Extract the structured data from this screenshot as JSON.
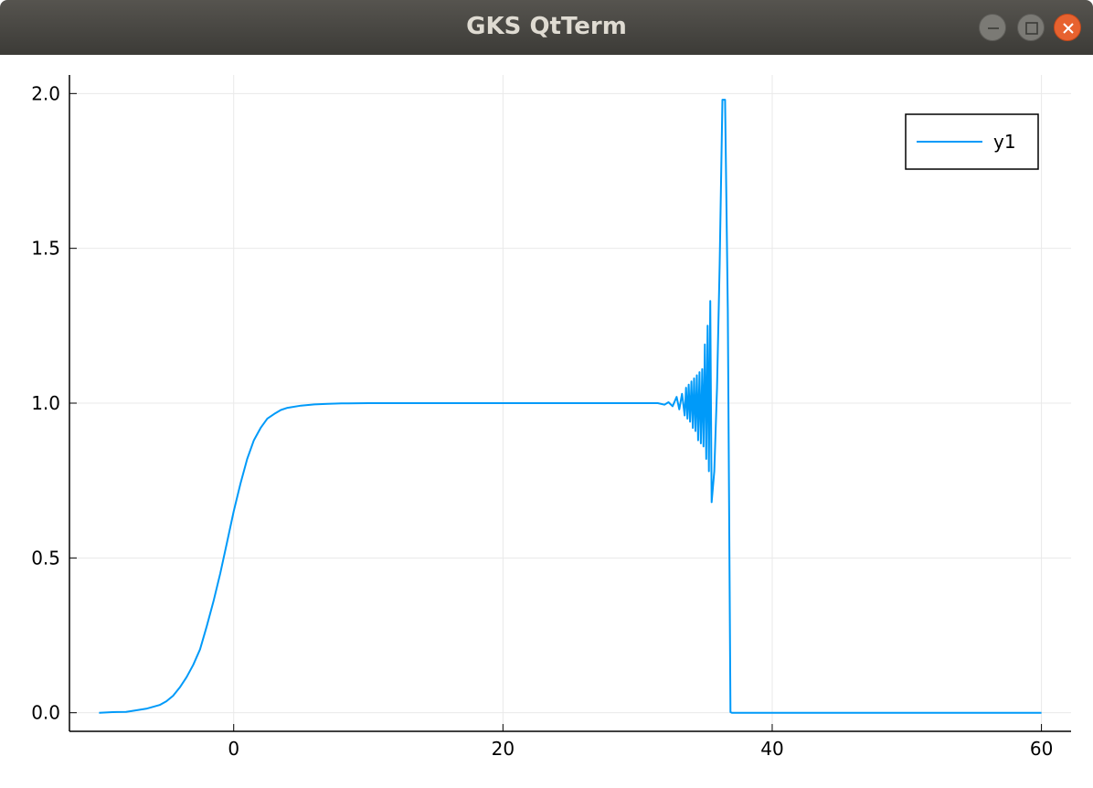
{
  "window": {
    "title": "GKS QtTerm"
  },
  "titlebar_buttons": {
    "minimize": "minimize-icon",
    "maximize": "maximize-icon",
    "close": "close-icon"
  },
  "colors": {
    "series": "#009af9",
    "grid": "#e9e9e9",
    "axis": "#000000",
    "close_button": "#e7622f"
  },
  "chart_data": {
    "type": "line",
    "title": "",
    "xlabel": "",
    "ylabel": "",
    "xlim": [
      -12.2,
      62.2
    ],
    "ylim": [
      -0.06,
      2.06
    ],
    "xticks": [
      0,
      20,
      40,
      60
    ],
    "xtick_labels": [
      "0",
      "20",
      "40",
      "60"
    ],
    "yticks": [
      0.0,
      0.5,
      1.0,
      1.5,
      2.0
    ],
    "ytick_labels": [
      "0.0",
      "0.5",
      "1.0",
      "1.5",
      "2.0"
    ],
    "grid": true,
    "legend": "top-right",
    "series": [
      {
        "name": "y1",
        "x": [
          -10.0,
          -9.0,
          -8.0,
          -7.5,
          -6.5,
          -5.5,
          -5.0,
          -4.5,
          -4.0,
          -3.5,
          -3.0,
          -2.5,
          -2.0,
          -1.5,
          -1.0,
          -0.5,
          0.0,
          0.5,
          1.0,
          1.5,
          2.0,
          2.5,
          3.0,
          3.5,
          4.0,
          5.0,
          6.0,
          7.0,
          8.0,
          10.0,
          15.0,
          20.0,
          25.0,
          30.0,
          31.5,
          32.0,
          32.3,
          32.6,
          32.9,
          33.1,
          33.3,
          33.5,
          33.6,
          33.7,
          33.8,
          33.9,
          34.0,
          34.1,
          34.2,
          34.3,
          34.4,
          34.5,
          34.6,
          34.7,
          34.8,
          34.9,
          35.0,
          35.1,
          35.2,
          35.3,
          35.4,
          35.5,
          35.7,
          35.9,
          36.1,
          36.3,
          36.5,
          36.7,
          36.9,
          37.0,
          40.0,
          45.0,
          50.0,
          55.0,
          60.0
        ],
        "y": [
          0.0,
          0.002,
          0.003,
          0.006,
          0.013,
          0.025,
          0.037,
          0.055,
          0.082,
          0.115,
          0.155,
          0.205,
          0.28,
          0.36,
          0.45,
          0.55,
          0.65,
          0.74,
          0.82,
          0.88,
          0.92,
          0.95,
          0.965,
          0.978,
          0.985,
          0.992,
          0.996,
          0.998,
          0.999,
          1.0,
          1.0,
          1.0,
          1.0,
          1.0,
          1.0,
          0.995,
          1.003,
          0.99,
          1.02,
          0.98,
          1.03,
          0.96,
          1.05,
          0.95,
          1.06,
          0.94,
          1.07,
          0.92,
          1.08,
          0.91,
          1.09,
          0.88,
          1.1,
          0.87,
          1.11,
          0.86,
          1.19,
          0.82,
          1.25,
          0.78,
          1.33,
          0.68,
          0.78,
          1.05,
          1.45,
          1.98,
          1.98,
          1.3,
          0.002,
          0.0,
          0.0,
          0.0,
          0.0,
          0.0,
          0.0
        ]
      }
    ]
  }
}
